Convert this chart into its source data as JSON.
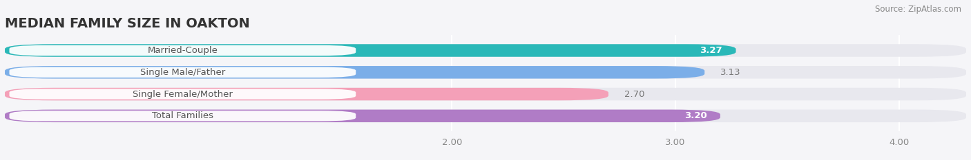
{
  "title": "MEDIAN FAMILY SIZE IN OAKTON",
  "source": "Source: ZipAtlas.com",
  "categories": [
    "Married-Couple",
    "Single Male/Father",
    "Single Female/Mother",
    "Total Families"
  ],
  "values": [
    3.27,
    3.13,
    2.7,
    3.2
  ],
  "bar_colors": [
    "#2ab8b8",
    "#7baee8",
    "#f4a0b8",
    "#b07cc6"
  ],
  "value_colors": [
    "white",
    "#888888",
    "#888888",
    "white"
  ],
  "value_inside": [
    true,
    false,
    false,
    true
  ],
  "xlim_data": [
    0.0,
    4.3
  ],
  "xstart": 0.0,
  "xticks": [
    2.0,
    3.0,
    4.0
  ],
  "xtick_labels": [
    "2.00",
    "3.00",
    "4.00"
  ],
  "bar_height": 0.58,
  "label_fontsize": 9.5,
  "value_fontsize": 9.5,
  "title_fontsize": 14,
  "source_fontsize": 8.5,
  "bg_color": "#f5f5f8",
  "bar_bg_color": "#e8e8ee",
  "label_bg_color": "#ffffff",
  "row_bg_color": "#f5f5f8"
}
